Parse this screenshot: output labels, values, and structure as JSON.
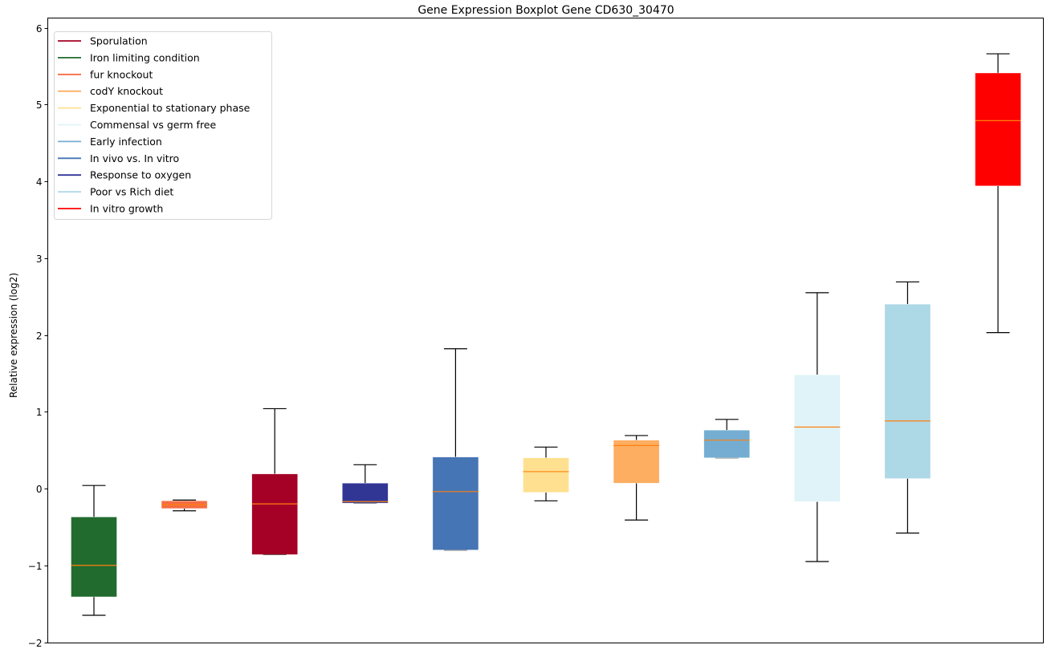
{
  "chart_data": {
    "type": "boxplot",
    "title": "Gene Expression Boxplot Gene CD630_30470",
    "xlabel": "",
    "ylabel": "Relative expression (log2)",
    "ylim": [
      -2.02,
      6.14
    ],
    "yticks": [
      -2,
      -1,
      0,
      1,
      2,
      3,
      4,
      5,
      6
    ],
    "ytick_labels": [
      "−2",
      "−1",
      "0",
      "1",
      "2",
      "3",
      "4",
      "5",
      "6"
    ],
    "grid": false,
    "legend_position": "top-left",
    "median_color": "#ff7f0e",
    "legend": [
      {
        "label": "Sporulation",
        "color": "#a50026"
      },
      {
        "label": "Iron limiting condition",
        "color": "#226b2e"
      },
      {
        "label": "fur knockout",
        "color": "#f46d43"
      },
      {
        "label": "codY knockout",
        "color": "#fdae61"
      },
      {
        "label": "Exponential to stationary phase",
        "color": "#fee090"
      },
      {
        "label": "Commensal vs germ free",
        "color": "#e0f3f8"
      },
      {
        "label": "Early infection",
        "color": "#74add1"
      },
      {
        "label": "In vivo vs. In vitro",
        "color": "#4575b4"
      },
      {
        "label": "Response to oxygen",
        "color": "#313695"
      },
      {
        "label": "Poor vs Rich diet",
        "color": "#add8e6"
      },
      {
        "label": "In vitro growth",
        "color": "#ff0000"
      }
    ],
    "boxes": [
      {
        "name": "Iron limiting condition",
        "color": "#226b2e",
        "whisker_low": -1.65,
        "q1": -1.41,
        "median": -1.0,
        "q3": -0.37,
        "whisker_high": 0.04
      },
      {
        "name": "fur knockout",
        "color": "#f46d43",
        "whisker_low": -0.29,
        "q1": -0.26,
        "median": -0.21,
        "q3": -0.16,
        "whisker_high": -0.15
      },
      {
        "name": "Sporulation",
        "color": "#a50026",
        "whisker_low": -0.86,
        "q1": -0.86,
        "median": -0.2,
        "q3": 0.19,
        "whisker_high": 1.04
      },
      {
        "name": "Response to oxygen",
        "color": "#313695",
        "whisker_low": -0.19,
        "q1": -0.19,
        "median": -0.17,
        "q3": 0.07,
        "whisker_high": 0.31
      },
      {
        "name": "In vivo vs. In vitro",
        "color": "#4575b4",
        "whisker_low": -0.8,
        "q1": -0.8,
        "median": -0.04,
        "q3": 0.41,
        "whisker_high": 1.82
      },
      {
        "name": "Exponential to stationary phase",
        "color": "#fee090",
        "whisker_low": -0.16,
        "q1": -0.05,
        "median": 0.22,
        "q3": 0.4,
        "whisker_high": 0.54
      },
      {
        "name": "codY knockout",
        "color": "#fdae61",
        "whisker_low": -0.41,
        "q1": 0.07,
        "median": 0.56,
        "q3": 0.63,
        "whisker_high": 0.69
      },
      {
        "name": "Early infection",
        "color": "#74add1",
        "whisker_low": 0.4,
        "q1": 0.4,
        "median": 0.63,
        "q3": 0.76,
        "whisker_high": 0.9
      },
      {
        "name": "Commensal vs germ free",
        "color": "#e0f3f8",
        "whisker_low": -0.95,
        "q1": -0.17,
        "median": 0.8,
        "q3": 1.48,
        "whisker_high": 2.55
      },
      {
        "name": "Poor vs Rich diet",
        "color": "#add8e6",
        "whisker_low": -0.58,
        "q1": 0.13,
        "median": 0.88,
        "q3": 2.4,
        "whisker_high": 2.69
      },
      {
        "name": "In vitro growth",
        "color": "#ff0000",
        "whisker_low": 2.03,
        "q1": 3.94,
        "median": 4.79,
        "q3": 5.41,
        "whisker_high": 5.66
      }
    ]
  }
}
